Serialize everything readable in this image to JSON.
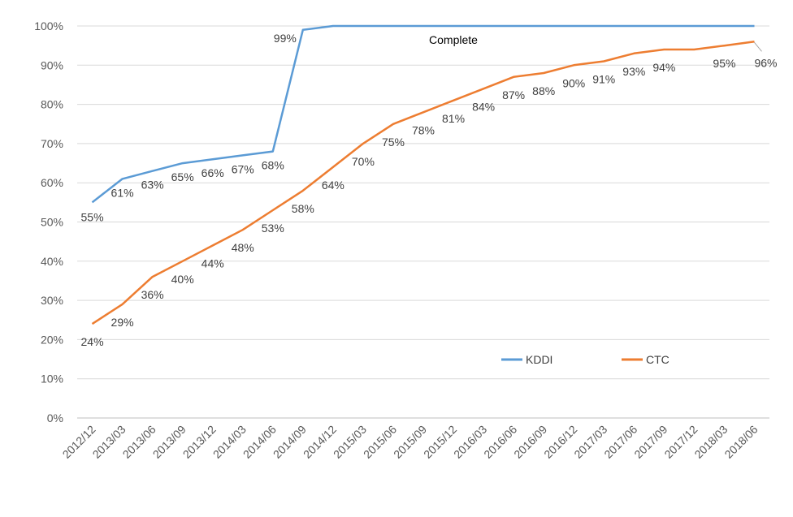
{
  "chart_data": {
    "type": "line",
    "title": "",
    "xlabel": "",
    "ylabel": "",
    "ylim": [
      0,
      100
    ],
    "y_ticks": [
      "0%",
      "10%",
      "20%",
      "30%",
      "40%",
      "50%",
      "60%",
      "70%",
      "80%",
      "90%",
      "100%"
    ],
    "grid": true,
    "legend_position": "bottom-right",
    "categories": [
      "2012/12",
      "2013/03",
      "2013/06",
      "2013/09",
      "2013/12",
      "2014/03",
      "2014/06",
      "2014/09",
      "2014/12",
      "2015/03",
      "2015/06",
      "2015/09",
      "2015/12",
      "2016/03",
      "2016/06",
      "2016/09",
      "2016/12",
      "2017/03",
      "2017/06",
      "2017/09",
      "2017/12",
      "2018/03",
      "2018/06"
    ],
    "series": [
      {
        "name": "KDDI",
        "color": "#5B9BD5",
        "values": [
          55,
          61,
          63,
          65,
          66,
          67,
          68,
          99,
          100,
          100,
          100,
          100,
          100,
          100,
          100,
          100,
          100,
          100,
          100,
          100,
          100,
          100,
          100
        ],
        "labels": [
          "55%",
          "61%",
          "63%",
          "65%",
          "66%",
          "67%",
          "68%",
          "99%"
        ]
      },
      {
        "name": "CTC",
        "color": "#ED7D31",
        "values": [
          24,
          29,
          36,
          40,
          44,
          48,
          53,
          58,
          64,
          70,
          75,
          78,
          81,
          84,
          87,
          88,
          90,
          91,
          93,
          94,
          94,
          95,
          96
        ],
        "labels": [
          "24%",
          "29%",
          "36%",
          "40%",
          "44%",
          "48%",
          "53%",
          "58%",
          "64%",
          "70%",
          "75%",
          "78%",
          "81%",
          "84%",
          "87%",
          "88%",
          "90%",
          "91%",
          "93%",
          "94%",
          "",
          "95%",
          "96%"
        ]
      }
    ],
    "annotations": [
      {
        "text": "Complete",
        "series": "KDDI"
      }
    ]
  }
}
